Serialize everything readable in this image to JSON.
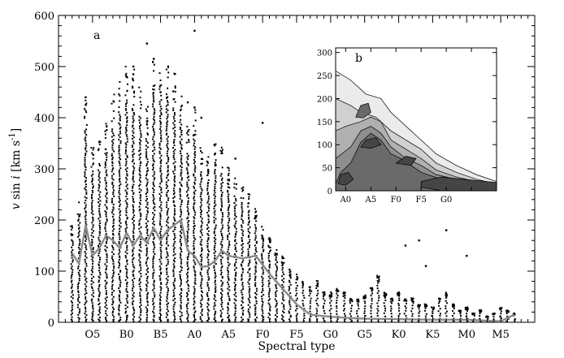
{
  "chart_data": [
    {
      "panel": "a",
      "type": "scatter",
      "xlabel": "Spectral type",
      "ylabel": "v sin i [km s-1]",
      "ylabel_parts": {
        "v": "v",
        "sin": " sin ",
        "i": "i",
        "unit_open": " [km s",
        "exp": "-1",
        "unit_close": "]"
      },
      "ylim": [
        0,
        600
      ],
      "yticks": [
        0,
        100,
        200,
        300,
        400,
        500,
        600
      ],
      "ytick_labels": [
        "0",
        "100",
        "200",
        "300",
        "400",
        "500",
        "600"
      ],
      "xlim": [
        -5,
        65
      ],
      "xticks": [
        0,
        5,
        10,
        15,
        20,
        25,
        30,
        35,
        40,
        45,
        50,
        55,
        60
      ],
      "xtick_labels": [
        "O5",
        "B0",
        "B5",
        "A0",
        "A5",
        "F0",
        "F5",
        "G0",
        "G5",
        "K0",
        "K5",
        "M0",
        "M5"
      ],
      "mean_line": {
        "x": [
          -3,
          -2,
          -1,
          0,
          1,
          2,
          3,
          4,
          5,
          6,
          7,
          8,
          9,
          10,
          11,
          12,
          13,
          14,
          15,
          16,
          17,
          18,
          19,
          20,
          22,
          24,
          26,
          28,
          30,
          32,
          34,
          36,
          38,
          40,
          45,
          50,
          55,
          58,
          60,
          62
        ],
        "y": [
          135,
          115,
          190,
          130,
          145,
          170,
          160,
          145,
          175,
          150,
          170,
          155,
          185,
          160,
          180,
          190,
          200,
          140,
          130,
          108,
          110,
          120,
          140,
          130,
          125,
          130,
          95,
          65,
          35,
          15,
          12,
          10,
          8,
          7,
          6,
          5,
          5,
          3,
          2,
          15
        ]
      },
      "scatter_columns": {
        "x": [
          -3,
          -2,
          -1,
          0,
          1,
          2,
          3,
          4,
          5,
          6,
          7,
          8,
          9,
          10,
          11,
          12,
          13,
          14,
          15,
          16,
          17,
          18,
          19,
          20,
          21,
          22,
          23,
          24,
          25,
          26,
          27,
          28,
          29,
          30,
          31,
          32,
          33,
          34,
          35,
          36,
          37,
          38,
          39,
          40,
          41,
          42,
          43,
          44,
          45,
          46,
          47,
          48,
          49,
          50,
          51,
          52,
          53,
          54,
          55,
          56,
          57,
          58,
          59,
          60,
          61,
          62
        ],
        "ymax": [
          160,
          200,
          380,
          290,
          300,
          330,
          380,
          410,
          430,
          420,
          400,
          360,
          450,
          420,
          440,
          420,
          380,
          330,
          360,
          290,
          280,
          300,
          290,
          260,
          240,
          230,
          220,
          190,
          160,
          140,
          120,
          110,
          90,
          80,
          70,
          60,
          70,
          50,
          50,
          60,
          50,
          40,
          40,
          45,
          60,
          80,
          50,
          40,
          50,
          40,
          40,
          30,
          30,
          25,
          40,
          50,
          30,
          20,
          25,
          15,
          20,
          10,
          15,
          25,
          20,
          15
        ]
      },
      "outliers": [
        {
          "x": -1,
          "y": 440
        },
        {
          "x": -1,
          "y": 425
        },
        {
          "x": 5,
          "y": 480
        },
        {
          "x": 6,
          "y": 500
        },
        {
          "x": 6,
          "y": 485
        },
        {
          "x": 8,
          "y": 545
        },
        {
          "x": 9,
          "y": 515
        },
        {
          "x": 10,
          "y": 450
        },
        {
          "x": 11,
          "y": 440
        },
        {
          "x": 14,
          "y": 430
        },
        {
          "x": 15,
          "y": 570
        },
        {
          "x": 15,
          "y": 420
        },
        {
          "x": 16,
          "y": 400
        },
        {
          "x": 21,
          "y": 320
        },
        {
          "x": 25,
          "y": 390
        },
        {
          "x": 46,
          "y": 150
        },
        {
          "x": 48,
          "y": 160
        },
        {
          "x": 49,
          "y": 110
        },
        {
          "x": 52,
          "y": 180
        },
        {
          "x": 55,
          "y": 130
        }
      ]
    },
    {
      "panel": "b",
      "type": "contour",
      "ylim": [
        0,
        310
      ],
      "yticks": [
        0,
        50,
        100,
        150,
        200,
        250,
        300
      ],
      "ytick_labels": [
        "0",
        "50",
        "100",
        "150",
        "200",
        "250",
        "300"
      ],
      "xlim": [
        13,
        45
      ],
      "xticks": [
        15,
        20,
        25,
        30,
        35,
        40
      ],
      "xtick_labels": [
        "A0",
        "A5",
        "F0",
        "F5",
        "G0",
        ""
      ],
      "contour_levels": 6,
      "label": "b"
    }
  ]
}
